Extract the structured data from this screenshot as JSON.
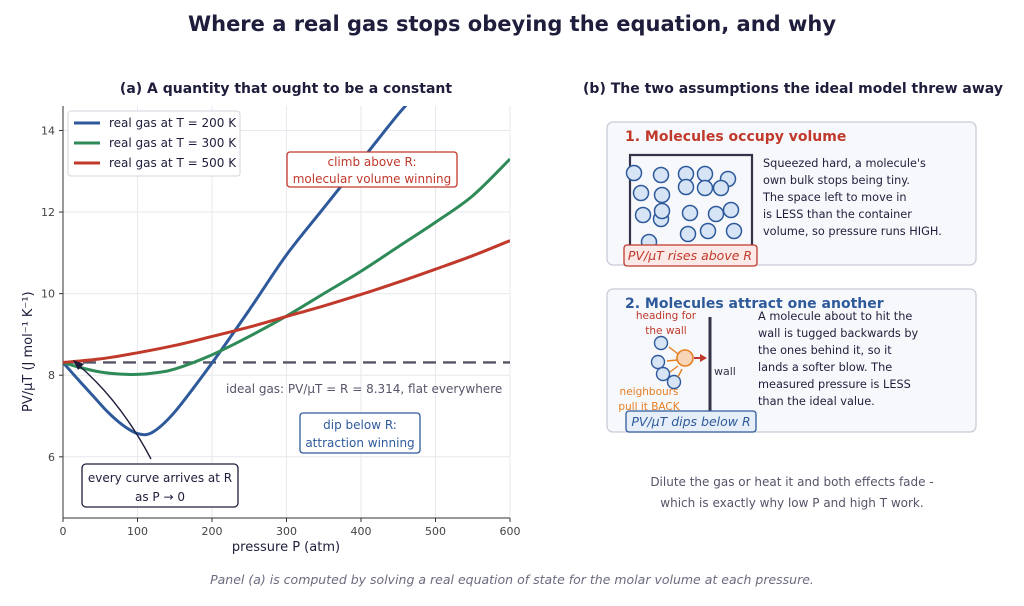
{
  "title": "Where a real gas stops obeying the equation, and why",
  "panel_a": {
    "title": "(a) A quantity that ought to be a constant",
    "legend": [
      {
        "label": "real gas at T = 200 K",
        "color": "#2e5a9c"
      },
      {
        "label": "real gas at T = 300 K",
        "color": "#2e8b57"
      },
      {
        "label": "real gas at T = 500 K",
        "color": "#c0392b"
      }
    ],
    "ideal_label": "ideal gas:  PV/μT = R = 8.314, flat everywhere",
    "climb_label": [
      "climb above R:",
      "molecular volume winning"
    ],
    "dip_label": [
      "dip below R:",
      "attraction winning"
    ],
    "limit_label": [
      "every curve arrives at R",
      "as P → 0"
    ]
  },
  "chart_data": {
    "type": "line",
    "xlabel": "pressure  P   (atm)",
    "ylabel": "PV/μT   (J mol⁻¹ K⁻¹)",
    "xlim": [
      0,
      600
    ],
    "ylim": [
      4.5,
      14.6
    ],
    "xticks": [
      0,
      100,
      200,
      300,
      400,
      500,
      600
    ],
    "yticks": [
      6,
      8,
      10,
      12,
      14
    ],
    "grid": true,
    "legend_position": "top-left",
    "ideal": {
      "name": "ideal gas",
      "value": 8.314
    },
    "series": [
      {
        "name": "real gas at T = 200 K",
        "color": "#2e5a9c",
        "x": [
          0,
          20,
          40,
          60,
          80,
          100,
          120,
          150,
          200,
          250,
          300,
          350,
          400,
          450,
          480
        ],
        "y": [
          8.314,
          7.9,
          7.5,
          7.1,
          6.78,
          6.57,
          6.6,
          7.1,
          8.3,
          9.6,
          10.95,
          12.1,
          13.25,
          14.4,
          15.0
        ]
      },
      {
        "name": "real gas at T = 300 K",
        "color": "#2e8b57",
        "x": [
          0,
          25,
          50,
          75,
          100,
          125,
          150,
          200,
          250,
          300,
          350,
          400,
          450,
          500,
          550,
          600
        ],
        "y": [
          8.314,
          8.18,
          8.08,
          8.03,
          8.02,
          8.06,
          8.15,
          8.5,
          8.95,
          9.45,
          10.0,
          10.55,
          11.15,
          11.75,
          12.4,
          13.3
        ]
      },
      {
        "name": "real gas at T = 500 K",
        "color": "#c0392b",
        "x": [
          0,
          50,
          100,
          150,
          200,
          250,
          300,
          350,
          400,
          450,
          500,
          550,
          600
        ],
        "y": [
          8.314,
          8.4,
          8.55,
          8.73,
          8.95,
          9.18,
          9.44,
          9.7,
          9.98,
          10.28,
          10.6,
          10.93,
          11.3
        ]
      }
    ]
  },
  "panel_b": {
    "title": "(b) The two assumptions the ideal model threw away",
    "card1": {
      "heading": "1.  Molecules occupy volume",
      "lines": [
        "Squeezed hard, a molecule's",
        "own bulk stops being tiny.",
        "The space left to move in",
        "is LESS than the container",
        "volume, so pressure runs HIGH."
      ],
      "badge": "PV/μT rises above R"
    },
    "card2": {
      "heading": "2.  Molecules attract one another",
      "lines": [
        "A molecule about to hit the",
        "wall is tugged backwards by",
        "the ones behind it, so it",
        "lands a softer blow. The",
        "measured pressure is LESS",
        "than the ideal value."
      ],
      "heading_label": [
        "heading for",
        "the wall"
      ],
      "neighbours_label": [
        "neighbours",
        "pull it BACK"
      ],
      "wall_label": "wall",
      "badge": "PV/μT dips below R"
    },
    "summary": [
      "Dilute the gas or heat it and both effects fade -",
      "which is exactly why low P and high T work."
    ]
  },
  "footer": "Panel (a) is computed by solving a real equation of state for the molar volume at each pressure."
}
